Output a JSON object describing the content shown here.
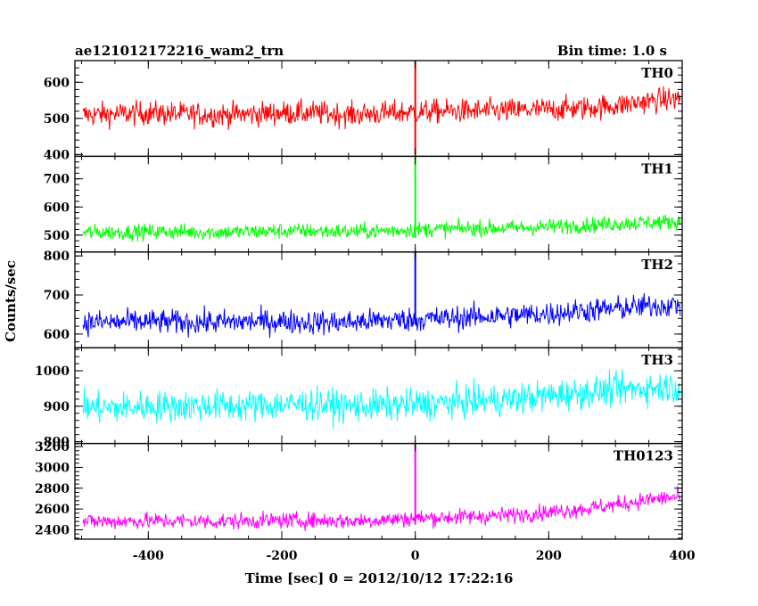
{
  "chart_data": {
    "type": "line",
    "title": "ae121012172216_wam2_trn",
    "subtitle": "Bin time: 1.0 s",
    "xlabel": "Time [sec] 0 = 2012/10/12 17:22:16",
    "ylabel": "Counts/sec",
    "xlim": [
      -510,
      400
    ],
    "xticks": [
      "-400",
      "-200",
      "0",
      "200",
      "400"
    ],
    "x_tick_values": [
      -400,
      -200,
      0,
      200,
      400
    ],
    "panels": [
      {
        "name": "TH0",
        "color": "#ff0000",
        "ylim": [
          395,
          660
        ],
        "yticks": [
          "400",
          "500",
          "600"
        ],
        "ytick_values": [
          400,
          500,
          600
        ],
        "x": [
          -500,
          -450,
          -400,
          -350,
          -300,
          -250,
          -200,
          -150,
          -100,
          -50,
          0,
          50,
          100,
          150,
          200,
          250,
          300,
          350,
          400
        ],
        "values": [
          510,
          512,
          515,
          512,
          510,
          512,
          515,
          515,
          510,
          514,
          518,
          520,
          520,
          522,
          525,
          528,
          535,
          548,
          555
        ],
        "noise": 30,
        "spike_at": 0,
        "spike_range": [
          400,
          660
        ]
      },
      {
        "name": "TH1",
        "color": "#00ff00",
        "ylim": [
          440,
          780
        ],
        "yticks": [
          "500",
          "600",
          "700"
        ],
        "ytick_values": [
          500,
          600,
          700
        ],
        "x": [
          -500,
          -450,
          -400,
          -350,
          -300,
          -250,
          -200,
          -150,
          -100,
          -50,
          0,
          50,
          100,
          150,
          200,
          250,
          300,
          350,
          400
        ],
        "values": [
          510,
          510,
          512,
          512,
          510,
          512,
          515,
          515,
          512,
          515,
          520,
          522,
          525,
          525,
          530,
          535,
          540,
          545,
          548
        ],
        "noise": 25,
        "spike_at": 0,
        "spike_range": [
          490,
          780
        ]
      },
      {
        "name": "TH2",
        "color": "#0000ff",
        "ylim": [
          565,
          810
        ],
        "yticks": [
          "600",
          "700",
          "800"
        ],
        "ytick_values": [
          600,
          700,
          800
        ],
        "x": [
          -500,
          -450,
          -400,
          -350,
          -300,
          -250,
          -200,
          -150,
          -100,
          -50,
          0,
          50,
          100,
          150,
          200,
          250,
          300,
          350,
          400
        ],
        "values": [
          630,
          630,
          632,
          630,
          630,
          632,
          632,
          630,
          630,
          635,
          638,
          640,
          645,
          648,
          652,
          660,
          665,
          672,
          675
        ],
        "noise": 28,
        "spike_at": 0,
        "spike_range": [
          625,
          810
        ]
      },
      {
        "name": "TH3",
        "color": "#00ffff",
        "ylim": [
          795,
          1065
        ],
        "yticks": [
          "800",
          "900",
          "1000"
        ],
        "ytick_values": [
          800,
          900,
          1000
        ],
        "x": [
          -500,
          -450,
          -400,
          -350,
          -300,
          -250,
          -200,
          -150,
          -100,
          -50,
          0,
          50,
          100,
          150,
          200,
          250,
          300,
          350,
          400
        ],
        "values": [
          895,
          895,
          900,
          900,
          902,
          900,
          905,
          905,
          900,
          902,
          905,
          910,
          915,
          920,
          930,
          938,
          945,
          952,
          955
        ],
        "noise": 40,
        "spike_at": null,
        "spike_range": null
      },
      {
        "name": "TH0123",
        "color": "#ff00ff",
        "ylim": [
          2310,
          3230
        ],
        "yticks": [
          "2400",
          "2600",
          "2800",
          "3000",
          "3200"
        ],
        "ytick_values": [
          2400,
          2600,
          2800,
          3000,
          3200
        ],
        "x": [
          -500,
          -450,
          -400,
          -350,
          -300,
          -250,
          -200,
          -150,
          -100,
          -50,
          0,
          50,
          100,
          150,
          200,
          250,
          300,
          350,
          400
        ],
        "values": [
          2480,
          2482,
          2485,
          2485,
          2480,
          2485,
          2490,
          2490,
          2485,
          2495,
          2510,
          2520,
          2530,
          2545,
          2570,
          2600,
          2640,
          2690,
          2720
        ],
        "noise": 70,
        "spike_at": 0,
        "spike_range": [
          2450,
          3230
        ]
      }
    ]
  }
}
